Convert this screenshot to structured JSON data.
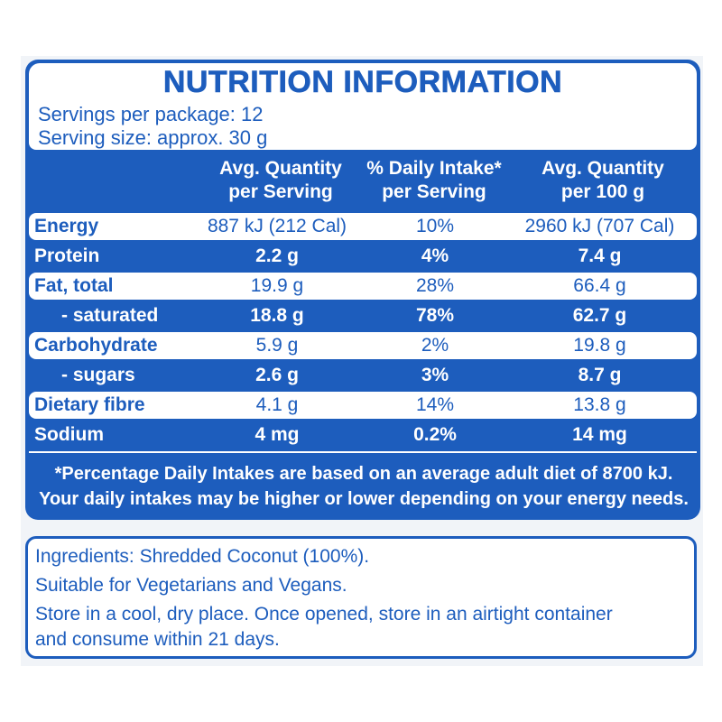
{
  "panel": {
    "title": "NUTRITION INFORMATION",
    "servings_per_package": "Servings per package: 12",
    "serving_size": "Serving size: approx. 30 g"
  },
  "columns": [
    {
      "line1": "Avg. Quantity",
      "line2": "per Serving"
    },
    {
      "line1": "% Daily Intake*",
      "line2": "per Serving"
    },
    {
      "line1": "Avg. Quantity",
      "line2": "per 100 g"
    }
  ],
  "rows": [
    {
      "name": "Energy",
      "per_serving": "887 kJ (212 Cal)",
      "daily_intake": "10%",
      "per_100g": "2960 kJ (707 Cal)"
    },
    {
      "name": "Protein",
      "per_serving": "2.2 g",
      "daily_intake": "4%",
      "per_100g": "7.4 g"
    },
    {
      "name": "Fat, total",
      "per_serving": "19.9 g",
      "daily_intake": "28%",
      "per_100g": "66.4 g"
    },
    {
      "name": "- saturated",
      "per_serving": "18.8 g",
      "daily_intake": "78%",
      "per_100g": "62.7 g"
    },
    {
      "name": "Carbohydrate",
      "per_serving": "5.9 g",
      "daily_intake": "2%",
      "per_100g": "19.8 g"
    },
    {
      "name": "- sugars",
      "per_serving": "2.6 g",
      "daily_intake": "3%",
      "per_100g": "8.7 g"
    },
    {
      "name": "Dietary fibre",
      "per_serving": "4.1 g",
      "daily_intake": "14%",
      "per_100g": "13.8 g"
    },
    {
      "name": "Sodium",
      "per_serving": "4 mg",
      "daily_intake": "0.2%",
      "per_100g": "14 mg"
    }
  ],
  "footnote": {
    "line1": "*Percentage Daily Intakes are based on an average adult diet of 8700 kJ.",
    "line2": "Your daily intakes may be higher or lower depending on your energy needs."
  },
  "ingredients": {
    "line1": "Ingredients: Shredded Coconut (100%).",
    "line2": "Suitable for Vegetarians and Vegans.",
    "line3": "Store in a cool, dry place. Once opened, store in an airtight container",
    "line4": "and consume within 21 days."
  },
  "colors": {
    "brand_blue": "#1d5dbd",
    "white": "#ffffff"
  }
}
